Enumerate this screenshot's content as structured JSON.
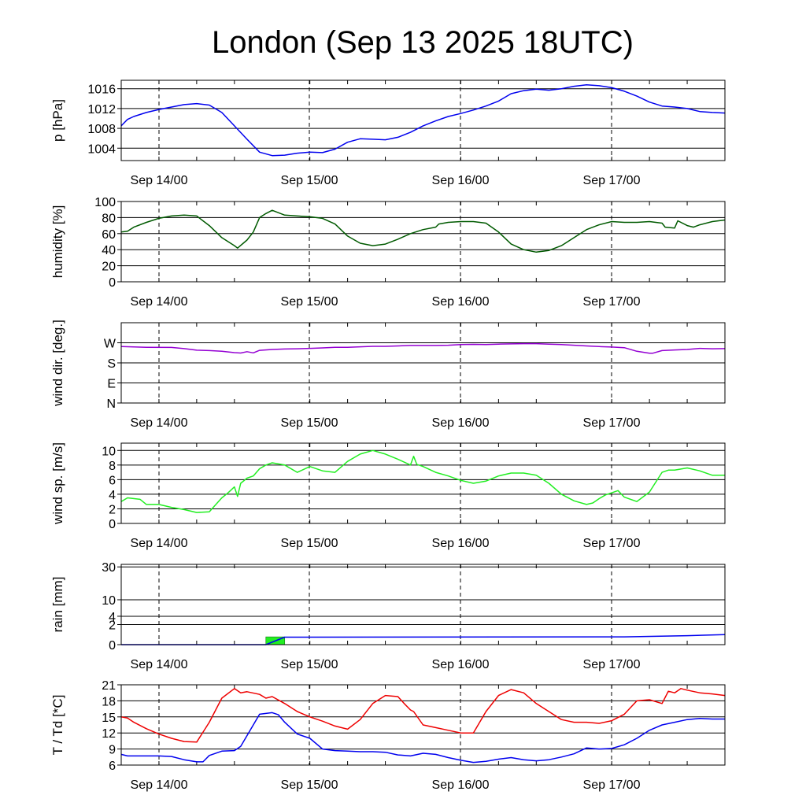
{
  "page": {
    "title": "London (Sep 13 2025 18UTC)"
  },
  "chart_data": [
    {
      "type": "line",
      "ylabel": "p [hPa]",
      "ylim": [
        1001.5,
        1017.7
      ],
      "y_ticks": [
        1004,
        1008,
        1012,
        1016
      ],
      "y_tick_labels": [
        "1004",
        "1008",
        "1012",
        "1016"
      ],
      "x_labels": [
        "Sep 14/00",
        "Sep 15/00",
        "Sep 16/00",
        "Sep 17/00"
      ],
      "x_range_hours": [
        0,
        96
      ],
      "series": [
        {
          "name": "pressure",
          "color": "#0000ee",
          "x": [
            0,
            1,
            2,
            4,
            6,
            8,
            10,
            12,
            14,
            16,
            18,
            20,
            22,
            24,
            26,
            28,
            30,
            32,
            34,
            36,
            38,
            40,
            42,
            44,
            46,
            48,
            50,
            52,
            54,
            56,
            58,
            60,
            62,
            64,
            66,
            68,
            70,
            72,
            74,
            76,
            78,
            80,
            82,
            84,
            86,
            88,
            90,
            92,
            94,
            96
          ],
          "values": [
            1008.5,
            1009.8,
            1010.4,
            1011.2,
            1011.8,
            1012.3,
            1012.8,
            1013.0,
            1012.7,
            1011.2,
            1008.5,
            1005.8,
            1003.2,
            1002.5,
            1002.6,
            1003.0,
            1003.2,
            1003.1,
            1003.8,
            1005.2,
            1005.9,
            1005.8,
            1005.7,
            1006.2,
            1007.2,
            1008.5,
            1009.5,
            1010.4,
            1011.0,
            1011.7,
            1012.5,
            1013.5,
            1015.0,
            1015.6,
            1015.9,
            1015.7,
            1016.0,
            1016.5,
            1016.8,
            1016.6,
            1016.2,
            1015.5,
            1014.5,
            1013.3,
            1012.5,
            1012.3,
            1012.0,
            1011.4,
            1011.2,
            1011.1
          ]
        }
      ]
    },
    {
      "type": "line",
      "ylabel": "humidity [%]",
      "ylim": [
        0,
        100
      ],
      "y_ticks": [
        0,
        20,
        40,
        60,
        80,
        100
      ],
      "y_tick_labels": [
        "0",
        "20",
        "40",
        "60",
        "80",
        "100"
      ],
      "x_labels": [
        "Sep 14/00",
        "Sep 15/00",
        "Sep 16/00",
        "Sep 17/00"
      ],
      "x_range_hours": [
        0,
        96
      ],
      "series": [
        {
          "name": "humidity",
          "color": "#005a00",
          "x": [
            0,
            1,
            2,
            4,
            6,
            8,
            10,
            12,
            14,
            16,
            18,
            18.5,
            20,
            21,
            22,
            23,
            24,
            26,
            28,
            30,
            32,
            34,
            36,
            38,
            40,
            42,
            44,
            46,
            48,
            50,
            50.5,
            52,
            54,
            56,
            58,
            60,
            62,
            64,
            66,
            68,
            70,
            72,
            74,
            76,
            78,
            80,
            82,
            84,
            86,
            86.5,
            88,
            88.5,
            90,
            91,
            92,
            94,
            96
          ],
          "values": [
            62,
            63,
            68,
            74,
            79,
            82,
            83,
            82,
            70,
            55,
            45,
            42,
            52,
            62,
            80,
            85,
            89,
            83,
            82,
            81,
            79,
            72,
            57,
            48,
            45,
            47,
            53,
            60,
            65,
            68,
            72,
            74,
            75,
            75,
            73,
            62,
            47,
            40,
            37,
            39,
            45,
            55,
            65,
            71,
            75,
            74,
            74,
            75,
            73,
            68,
            67,
            76,
            70,
            68,
            71,
            75,
            77
          ]
        }
      ]
    },
    {
      "type": "line",
      "ylabel": "wind dir. [deg.]",
      "ylim": [
        0,
        360
      ],
      "y_ticks": [
        0,
        90,
        180,
        270
      ],
      "y_tick_labels": [
        "N",
        "E",
        "S",
        "W"
      ],
      "x_labels": [
        "Sep 14/00",
        "Sep 15/00",
        "Sep 16/00",
        "Sep 17/00"
      ],
      "x_range_hours": [
        0,
        96
      ],
      "series": [
        {
          "name": "wind direction",
          "color": "#9400d3",
          "x": [
            0,
            4,
            8,
            10,
            12,
            14,
            16,
            18,
            19,
            20,
            21,
            22,
            24,
            26,
            28,
            30,
            32,
            34,
            36,
            38,
            40,
            42,
            44,
            46,
            48,
            50,
            52,
            54,
            56,
            58,
            60,
            62,
            64,
            66,
            68,
            70,
            72,
            74,
            76,
            78,
            80,
            82,
            84,
            84.5,
            86,
            88,
            90,
            92,
            94,
            96
          ],
          "values": [
            253,
            250,
            249,
            244,
            237,
            235,
            232,
            226,
            224,
            230,
            225,
            236,
            240,
            242,
            243,
            245,
            247,
            250,
            250,
            252,
            254,
            254,
            256,
            258,
            258,
            258,
            259,
            262,
            263,
            262,
            264,
            265,
            266,
            266,
            264,
            262,
            259,
            256,
            253,
            251,
            248,
            232,
            223,
            223,
            235,
            238,
            240,
            245,
            243,
            244
          ]
        }
      ]
    },
    {
      "type": "line",
      "ylabel": "wind sp. [m/s]",
      "ylim": [
        0,
        11
      ],
      "y_ticks": [
        0,
        2,
        4,
        6,
        8,
        10
      ],
      "y_tick_labels": [
        "0",
        "2",
        "4",
        "6",
        "8",
        "10"
      ],
      "x_labels": [
        "Sep 14/00",
        "Sep 15/00",
        "Sep 16/00",
        "Sep 17/00"
      ],
      "x_range_hours": [
        0,
        96
      ],
      "series": [
        {
          "name": "wind speed",
          "color": "#22ee22",
          "x": [
            0,
            1,
            3,
            4,
            6,
            8,
            10,
            12,
            14,
            16,
            17,
            18,
            18.5,
            19,
            20,
            21,
            22,
            23,
            24,
            26,
            28,
            30,
            32,
            34,
            36,
            38,
            40,
            42,
            44,
            46,
            46.5,
            47,
            48,
            50,
            52,
            54,
            56,
            58,
            60,
            62,
            64,
            66,
            68,
            70,
            72,
            74,
            75,
            76,
            77,
            78,
            79,
            80,
            82,
            84,
            86,
            87,
            88,
            90,
            92,
            94,
            96
          ],
          "values": [
            3.0,
            3.5,
            3.3,
            2.6,
            2.6,
            2.2,
            1.9,
            1.5,
            1.6,
            3.5,
            4.2,
            5.0,
            3.7,
            5.5,
            6.2,
            6.5,
            7.5,
            8.0,
            8.3,
            8.0,
            7.0,
            7.8,
            7.2,
            7.0,
            8.5,
            9.5,
            10.0,
            9.5,
            8.8,
            8.0,
            9.2,
            8.1,
            7.8,
            7.0,
            6.5,
            5.9,
            5.5,
            5.8,
            6.5,
            6.9,
            6.9,
            6.6,
            5.5,
            4.0,
            3.1,
            2.6,
            2.8,
            3.4,
            3.9,
            4.2,
            4.5,
            3.6,
            3.0,
            4.3,
            7.0,
            7.3,
            7.3,
            7.6,
            7.2,
            6.6,
            6.6
          ]
        }
      ]
    },
    {
      "type": "area",
      "ylabel": "rain [mm]",
      "y_ticks": [
        0,
        2,
        4,
        10,
        30
      ],
      "y_tick_labels": [
        "0",
        "2",
        "4",
        "10",
        "30"
      ],
      "scale": "sqrt",
      "x_labels": [
        "Sep 14/00",
        "Sep 15/00",
        "Sep 16/00",
        "Sep 17/00"
      ],
      "x_range_hours": [
        0,
        96
      ],
      "bars": [
        {
          "start_hour": 23,
          "end_hour": 26,
          "value_mm": 0.3,
          "color": "#22ee22"
        }
      ],
      "series": [
        {
          "name": "accumulated rain",
          "color": "#0000ee",
          "x": [
            0,
            23,
            26,
            80,
            90,
            96
          ],
          "values": [
            0,
            0,
            0.28,
            0.3,
            0.4,
            0.5
          ]
        }
      ]
    },
    {
      "type": "line",
      "ylabel": "T / Td [*C]",
      "ylim": [
        6,
        21
      ],
      "y_ticks": [
        6,
        9,
        12,
        15,
        18,
        21
      ],
      "y_tick_labels": [
        "6",
        "9",
        "12",
        "15",
        "18",
        "21"
      ],
      "x_labels": [
        "Sep 14/00",
        "Sep 15/00",
        "Sep 16/00",
        "Sep 17/00"
      ],
      "x_range_hours": [
        0,
        96
      ],
      "series": [
        {
          "name": "temperature",
          "color": "#ee0000",
          "x": [
            0,
            1,
            2,
            4,
            6,
            8,
            10,
            12,
            14,
            16,
            18,
            19,
            20,
            22,
            23,
            24,
            26,
            28,
            30,
            32,
            34,
            36,
            38,
            40,
            42,
            44,
            45,
            46,
            46.5,
            48,
            50,
            52,
            54,
            56,
            58,
            60,
            62,
            64,
            66,
            68,
            70,
            72,
            74,
            76,
            78,
            80,
            82,
            84,
            86,
            87,
            88,
            89,
            90,
            92,
            94,
            96
          ],
          "values": [
            15.0,
            14.8,
            14.0,
            12.8,
            11.8,
            11.0,
            10.4,
            10.3,
            14.0,
            18.5,
            20.3,
            19.5,
            19.7,
            19.2,
            18.5,
            18.8,
            17.5,
            16.0,
            15.0,
            14.2,
            13.3,
            12.7,
            14.5,
            17.5,
            19.0,
            18.8,
            17.5,
            16.3,
            16.0,
            13.5,
            13.0,
            12.5,
            12.0,
            12.0,
            16.0,
            19.0,
            20.1,
            19.5,
            17.5,
            16.0,
            14.5,
            14.0,
            14.0,
            13.8,
            14.3,
            15.5,
            18.0,
            18.2,
            17.5,
            19.8,
            19.5,
            20.3,
            20.0,
            19.5,
            19.3,
            19.0
          ]
        },
        {
          "name": "dew point",
          "color": "#0000ee",
          "x": [
            0,
            1,
            2,
            4,
            6,
            8,
            10,
            12,
            13,
            14,
            16,
            18,
            19,
            20,
            22,
            24,
            25,
            26,
            28,
            30,
            32,
            34,
            36,
            38,
            40,
            42,
            44,
            46,
            48,
            50,
            52,
            54,
            56,
            58,
            60,
            62,
            64,
            66,
            68,
            70,
            72,
            74,
            76,
            78,
            80,
            82,
            84,
            86,
            88,
            90,
            92,
            94,
            96
          ],
          "values": [
            8.0,
            7.7,
            7.7,
            7.7,
            7.7,
            7.6,
            7.0,
            6.6,
            6.6,
            7.8,
            8.6,
            8.7,
            9.5,
            11.5,
            15.5,
            15.8,
            15.4,
            14.0,
            11.8,
            11.0,
            9.0,
            8.7,
            8.6,
            8.5,
            8.5,
            8.4,
            7.9,
            7.7,
            8.2,
            8.0,
            7.4,
            6.9,
            6.5,
            6.7,
            7.1,
            7.4,
            7.0,
            6.8,
            7.0,
            7.5,
            8.1,
            9.2,
            9.0,
            9.1,
            9.8,
            11.0,
            12.5,
            13.5,
            14.0,
            14.5,
            14.7,
            14.6,
            14.6
          ]
        }
      ]
    }
  ]
}
